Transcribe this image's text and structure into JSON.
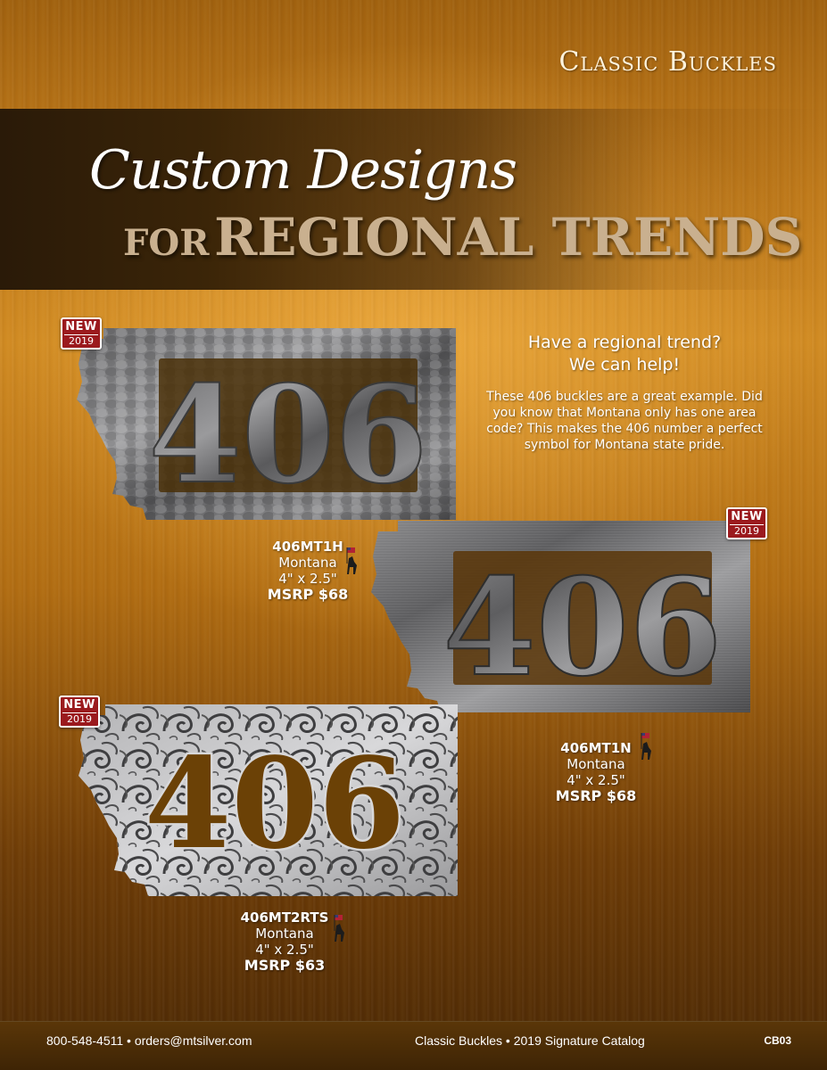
{
  "header": {
    "section_title": "Classic Buckles",
    "script_title": "Custom Designs",
    "title_prefix": "FOR",
    "title_main": "REGIONAL TRENDS"
  },
  "badge": {
    "word": "NEW",
    "year": "2019",
    "color": "#9b1a1e"
  },
  "buckle_number": "406",
  "pitch": {
    "headline_line1": "Have a regional trend?",
    "headline_line2": "We can help!",
    "body": "These 406 buckles are a great example. Did you know that Montana only has one area code? This makes the 406 number a perfect symbol for Montana state pride."
  },
  "products": [
    {
      "sku": "406MT1H",
      "name": "Montana",
      "size": "4\" x 2.5\"",
      "msrp": "MSRP $68",
      "finish": "hammered"
    },
    {
      "sku": "406MT1N",
      "name": "Montana",
      "size": "4\" x 2.5\"",
      "msrp": "MSRP $68",
      "finish": "brushed"
    },
    {
      "sku": "406MT2RTS",
      "name": "Montana",
      "size": "4\" x 2.5\"",
      "msrp": "MSRP $63",
      "finish": "scroll-engraved"
    }
  ],
  "footer": {
    "contact": "800-548-4511 • orders@mtsilver.com",
    "catalog": "Classic Buckles • 2019 Signature Catalog",
    "page_code": "CB03"
  }
}
